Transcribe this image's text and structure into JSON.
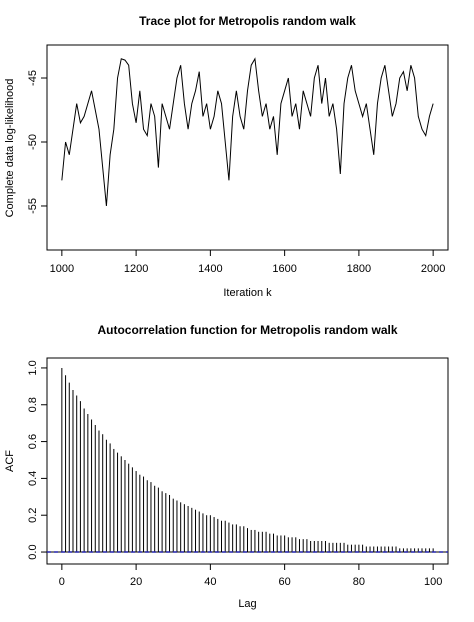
{
  "chart_data": [
    {
      "type": "line",
      "title": "Trace plot for Metropolis random walk",
      "x_label": "Iteration k",
      "y_label": "Complete data log-likelihood",
      "color": "#000000",
      "x": [
        1000,
        1010,
        1020,
        1030,
        1040,
        1050,
        1060,
        1070,
        1080,
        1090,
        1100,
        1110,
        1120,
        1130,
        1140,
        1150,
        1160,
        1170,
        1180,
        1190,
        1200,
        1210,
        1220,
        1230,
        1240,
        1250,
        1260,
        1270,
        1280,
        1290,
        1300,
        1310,
        1320,
        1330,
        1340,
        1350,
        1360,
        1370,
        1380,
        1390,
        1400,
        1410,
        1420,
        1430,
        1440,
        1450,
        1460,
        1470,
        1480,
        1490,
        1500,
        1510,
        1520,
        1530,
        1540,
        1550,
        1560,
        1570,
        1580,
        1590,
        1600,
        1610,
        1620,
        1630,
        1640,
        1650,
        1660,
        1670,
        1680,
        1690,
        1700,
        1710,
        1720,
        1730,
        1740,
        1750,
        1760,
        1770,
        1780,
        1790,
        1800,
        1810,
        1820,
        1830,
        1840,
        1850,
        1860,
        1870,
        1880,
        1890,
        1900,
        1910,
        1920,
        1930,
        1940,
        1950,
        1960,
        1970,
        1980,
        1990,
        2000
      ],
      "values": [
        -53,
        -50,
        -51,
        -49,
        -47,
        -48.5,
        -48,
        -47,
        -46,
        -47.5,
        -49,
        -52,
        -55,
        -51,
        -49,
        -45,
        -43.5,
        -43.6,
        -44,
        -47,
        -48.5,
        -46,
        -49,
        -49.5,
        -47,
        -48,
        -52,
        -47,
        -48,
        -49,
        -47,
        -45,
        -44,
        -47,
        -49,
        -47,
        -46,
        -44.5,
        -48,
        -47,
        -49,
        -48,
        -46,
        -47,
        -50,
        -53,
        -48,
        -46,
        -48,
        -49,
        -46,
        -44,
        -43.5,
        -46,
        -48,
        -47,
        -49,
        -48,
        -51,
        -47,
        -46,
        -45,
        -48,
        -47,
        -49,
        -46,
        -47,
        -48,
        -45,
        -44,
        -47,
        -45,
        -48,
        -47,
        -49,
        -52.5,
        -47,
        -45,
        -44,
        -46,
        -47,
        -48,
        -47,
        -49,
        -51,
        -47,
        -45,
        -44,
        -46,
        -48,
        -47,
        -45,
        -44.5,
        -46,
        -44,
        -45,
        -48,
        -49,
        -49.5,
        -48,
        -47
      ],
      "xlim": [
        960,
        2040
      ],
      "xticks": [
        1000,
        1200,
        1400,
        1600,
        1800,
        2000
      ],
      "ylim": [
        -58.44,
        -42.42
      ],
      "yticks": [
        -55,
        -50,
        -45
      ]
    },
    {
      "type": "stem",
      "title": "Autocorrelation function for Metropolis random walk",
      "x_label": "Lag",
      "y_label": "ACF",
      "color": "#000000",
      "ci_color": "#2222aa",
      "ci_value": 0,
      "x": [
        0,
        1,
        2,
        3,
        4,
        5,
        6,
        7,
        8,
        9,
        10,
        11,
        12,
        13,
        14,
        15,
        16,
        17,
        18,
        19,
        20,
        21,
        22,
        23,
        24,
        25,
        26,
        27,
        28,
        29,
        30,
        31,
        32,
        33,
        34,
        35,
        36,
        37,
        38,
        39,
        40,
        41,
        42,
        43,
        44,
        45,
        46,
        47,
        48,
        49,
        50,
        51,
        52,
        53,
        54,
        55,
        56,
        57,
        58,
        59,
        60,
        61,
        62,
        63,
        64,
        65,
        66,
        67,
        68,
        69,
        70,
        71,
        72,
        73,
        74,
        75,
        76,
        77,
        78,
        79,
        80,
        81,
        82,
        83,
        84,
        85,
        86,
        87,
        88,
        89,
        90,
        91,
        92,
        93,
        94,
        95,
        96,
        97,
        98,
        99,
        100
      ],
      "values": [
        1,
        0.96,
        0.92,
        0.88,
        0.85,
        0.82,
        0.78,
        0.75,
        0.72,
        0.69,
        0.66,
        0.64,
        0.61,
        0.59,
        0.56,
        0.54,
        0.52,
        0.5,
        0.48,
        0.46,
        0.44,
        0.42,
        0.41,
        0.39,
        0.38,
        0.36,
        0.35,
        0.33,
        0.32,
        0.31,
        0.29,
        0.28,
        0.27,
        0.26,
        0.25,
        0.24,
        0.23,
        0.22,
        0.21,
        0.2,
        0.2,
        0.19,
        0.18,
        0.17,
        0.17,
        0.16,
        0.15,
        0.15,
        0.14,
        0.14,
        0.13,
        0.12,
        0.12,
        0.11,
        0.11,
        0.11,
        0.1,
        0.1,
        0.09,
        0.09,
        0.09,
        0.08,
        0.08,
        0.08,
        0.07,
        0.07,
        0.07,
        0.06,
        0.06,
        0.06,
        0.06,
        0.06,
        0.05,
        0.05,
        0.05,
        0.05,
        0.05,
        0.04,
        0.04,
        0.04,
        0.04,
        0.04,
        0.03,
        0.03,
        0.03,
        0.03,
        0.03,
        0.03,
        0.03,
        0.03,
        0.03,
        0.02,
        0.02,
        0.02,
        0.02,
        0.02,
        0.02,
        0.02,
        0.02,
        0.02,
        0.02
      ],
      "xlim": [
        -4,
        104
      ],
      "xticks": [
        0,
        20,
        40,
        60,
        80,
        100
      ],
      "ylim": [
        -0.065,
        1.054
      ],
      "yticks": [
        {
          "value": 0,
          "label": "0.0"
        },
        0.2,
        0.4,
        0.6,
        0.8,
        {
          "value": 1,
          "label": "1.0"
        }
      ]
    }
  ]
}
